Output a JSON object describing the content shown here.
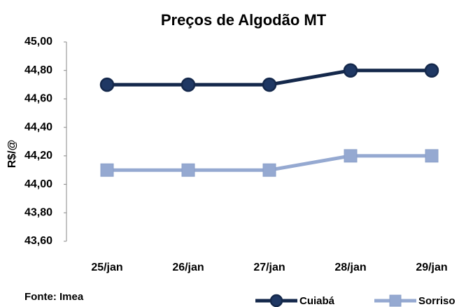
{
  "chart_data": {
    "type": "line",
    "title": "Preços de Algodão MT",
    "y_label": "R$/@",
    "source": "Fonte: Imea",
    "categories": [
      "25/jan",
      "26/jan",
      "27/jan",
      "28/jan",
      "29/jan"
    ],
    "series": [
      {
        "name": "Cuiabá",
        "color": "#14284b",
        "marker": "circle",
        "values": [
          44.7,
          44.7,
          44.7,
          44.8,
          44.8
        ]
      },
      {
        "name": "Sorriso",
        "color": "#95a9d1",
        "marker": "square",
        "values": [
          44.1,
          44.1,
          44.1,
          44.2,
          44.2
        ]
      }
    ],
    "ylim": [
      43.6,
      45.0
    ],
    "yticks": [
      {
        "value": 43.6,
        "label": "43,60"
      },
      {
        "value": 43.8,
        "label": "43,80"
      },
      {
        "value": 44.0,
        "label": "44,00"
      },
      {
        "value": 44.2,
        "label": "44,20"
      },
      {
        "value": 44.4,
        "label": "44,40"
      },
      {
        "value": 44.6,
        "label": "44,60"
      },
      {
        "value": 44.8,
        "label": "44,80"
      },
      {
        "value": 45.0,
        "label": "45,00"
      }
    ],
    "grid": false,
    "legend": "bottom-right"
  }
}
